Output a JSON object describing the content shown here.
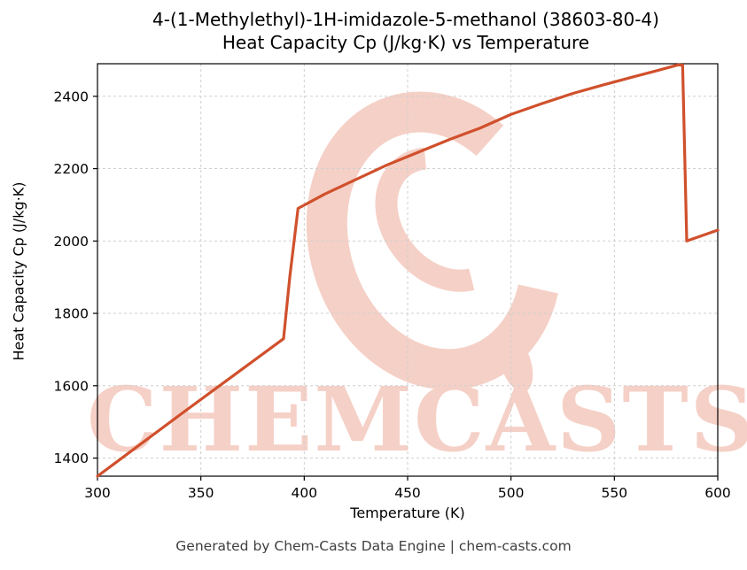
{
  "title": {
    "line1": "4-(1-Methylethyl)-1H-imidazole-5-methanol (38603-80-4)",
    "line2": "Heat Capacity Cp (J/kg·K) vs Temperature"
  },
  "watermark": {
    "text": "CHEMCASTS",
    "color": "#de5a36"
  },
  "footer": {
    "text": "Generated by Chem-Casts Data Engine | chem-casts.com"
  },
  "chart_data": {
    "type": "line",
    "title": "4-(1-Methylethyl)-1H-imidazole-5-methanol (38603-80-4) Heat Capacity Cp (J/kg·K) vs Temperature",
    "xlabel": "Temperature (K)",
    "ylabel": "Heat Capacity Cp (J/kg·K)",
    "xlim": [
      300,
      600
    ],
    "ylim": [
      1350,
      2490
    ],
    "x_ticks": [
      300,
      350,
      400,
      450,
      500,
      550,
      600
    ],
    "y_ticks": [
      1400,
      1600,
      1800,
      2000,
      2200,
      2400
    ],
    "grid": true,
    "grid_style": "dashed",
    "legend": "none",
    "line_color": "#d0502c",
    "series": [
      {
        "name": "Heat Capacity Cp",
        "x": [
          300,
          340,
          390,
          393,
          397,
          410,
          425,
          440,
          455,
          470,
          485,
          500,
          515,
          530,
          545,
          560,
          570,
          581,
          583,
          585,
          600
        ],
        "y": [
          1350,
          1520,
          1730,
          1900,
          2090,
          2130,
          2170,
          2210,
          2245,
          2280,
          2312,
          2350,
          2380,
          2408,
          2432,
          2455,
          2470,
          2487,
          2486,
          2000,
          2030
        ]
      }
    ]
  }
}
